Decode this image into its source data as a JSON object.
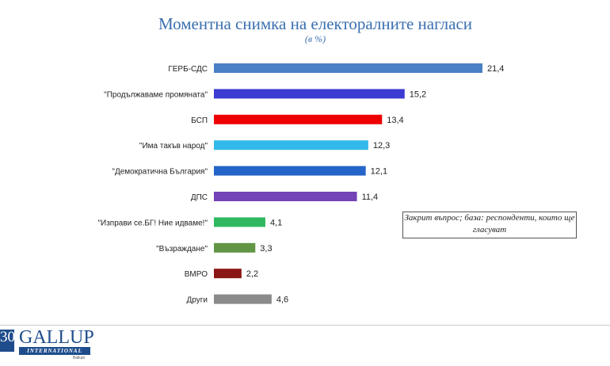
{
  "chart_data": {
    "type": "bar",
    "orientation": "horizontal",
    "title": "Моментна снимка на електоралните нагласи",
    "subtitle": "(в %)",
    "categories": [
      "ГЕРБ-СДС",
      "\"Продължаваме промяната\"",
      "БСП",
      "\"Има такъв народ\"",
      "\"Демократична България\"",
      "ДПС",
      "\"Изправи се.БГ! Ние идваме!\"",
      "\"Възраждане\"",
      "ВМРО",
      "Други"
    ],
    "values": [
      21.4,
      15.2,
      13.4,
      12.3,
      12.1,
      11.4,
      4.1,
      3.3,
      2.2,
      4.6
    ],
    "value_labels": [
      "21,4",
      "15,2",
      "13,4",
      "12,3",
      "12,1",
      "11,4",
      "4,1",
      "3,3",
      "2,2",
      "4,6"
    ],
    "colors": [
      "#4a80c4",
      "#3c3cd2",
      "#ee0000",
      "#33b8ea",
      "#2564c8",
      "#7443b5",
      "#30b860",
      "#629544",
      "#8b1616",
      "#8a8a8a"
    ],
    "grid": false,
    "annotation": "Закрит въпрос; база: респонденти, които ще гласуват"
  },
  "logo": {
    "number": "30",
    "brand": "GALLUP",
    "sub": "INTERNATIONAL",
    "region": "Balkan"
  }
}
